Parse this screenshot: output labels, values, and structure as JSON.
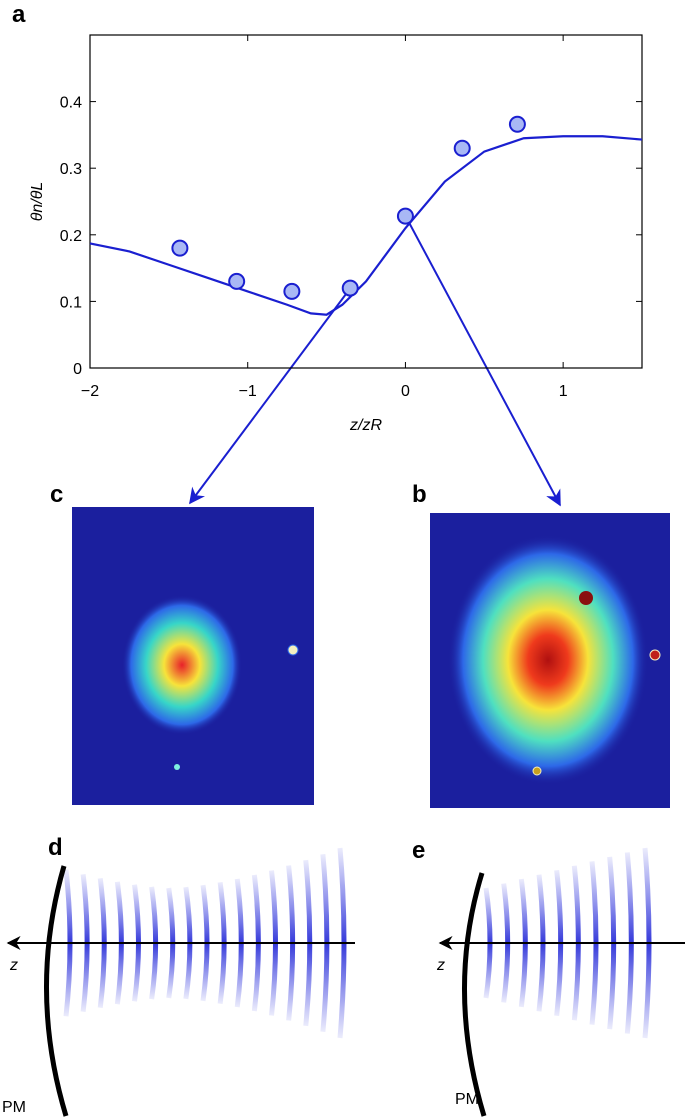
{
  "chart_data": {
    "type": "line",
    "x_label": "z/zR",
    "y_label": "θn/θL",
    "xlim": [
      -2,
      1.5
    ],
    "ylim": [
      0,
      0.5
    ],
    "xticks": [
      {
        "value": -2,
        "label": "−2"
      },
      {
        "value": -1,
        "label": "−1"
      },
      0,
      1
    ],
    "yticks": [
      0,
      0.1,
      0.2,
      0.3,
      0.4
    ],
    "series": [
      {
        "mode": "line",
        "color": "#1a1fd0",
        "x": [
          -2,
          -1.75,
          -1.5,
          -1.25,
          -1,
          -0.75,
          -0.6,
          -0.5,
          -0.4,
          -0.25,
          0,
          0.25,
          0.5,
          0.75,
          1,
          1.25,
          1.5
        ],
        "values": [
          0.187,
          0.175,
          0.155,
          0.135,
          0.115,
          0.095,
          0.082,
          0.08,
          0.095,
          0.13,
          0.21,
          0.28,
          0.325,
          0.345,
          0.348,
          0.348,
          0.343
        ]
      },
      {
        "mode": "markers",
        "color": "#1a1fd0",
        "fill": "#a9b8f5",
        "x": [
          -1.43,
          -1.07,
          -0.72,
          -0.35,
          0,
          0.36,
          0.71
        ],
        "values": [
          0.18,
          0.13,
          0.115,
          0.12,
          0.228,
          0.33,
          0.366
        ]
      }
    ]
  },
  "panels": {
    "labels": [
      "a",
      "b",
      "c",
      "d",
      "e"
    ],
    "axis_symbols": [
      "z",
      "z"
    ],
    "mirror_labels": [
      "PM",
      "PM"
    ]
  }
}
